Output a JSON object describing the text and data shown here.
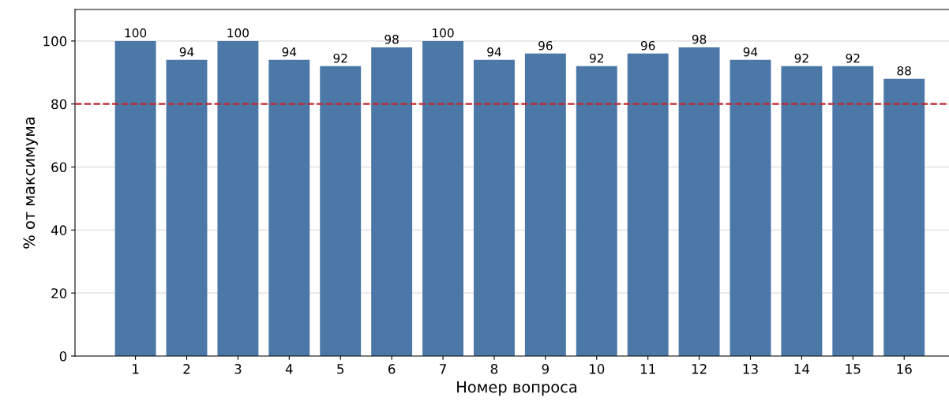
{
  "chart_data": {
    "type": "bar",
    "xlabel": "Номер вопроса",
    "ylabel": "% от максимума",
    "categories": [
      "1",
      "2",
      "3",
      "4",
      "5",
      "6",
      "7",
      "8",
      "9",
      "10",
      "11",
      "12",
      "13",
      "14",
      "15",
      "16"
    ],
    "values": [
      100,
      94,
      100,
      94,
      92,
      98,
      100,
      94,
      96,
      92,
      96,
      98,
      94,
      92,
      92,
      88
    ],
    "color": "#4c78a8",
    "data_labels": true,
    "ylim": [
      0,
      110
    ],
    "yticks": [
      0,
      20,
      40,
      60,
      80,
      100
    ],
    "grid": "y",
    "ref_lines": [
      {
        "axis": "y",
        "value": 80,
        "color": "#c0282d",
        "line_style": "dashed"
      }
    ]
  }
}
